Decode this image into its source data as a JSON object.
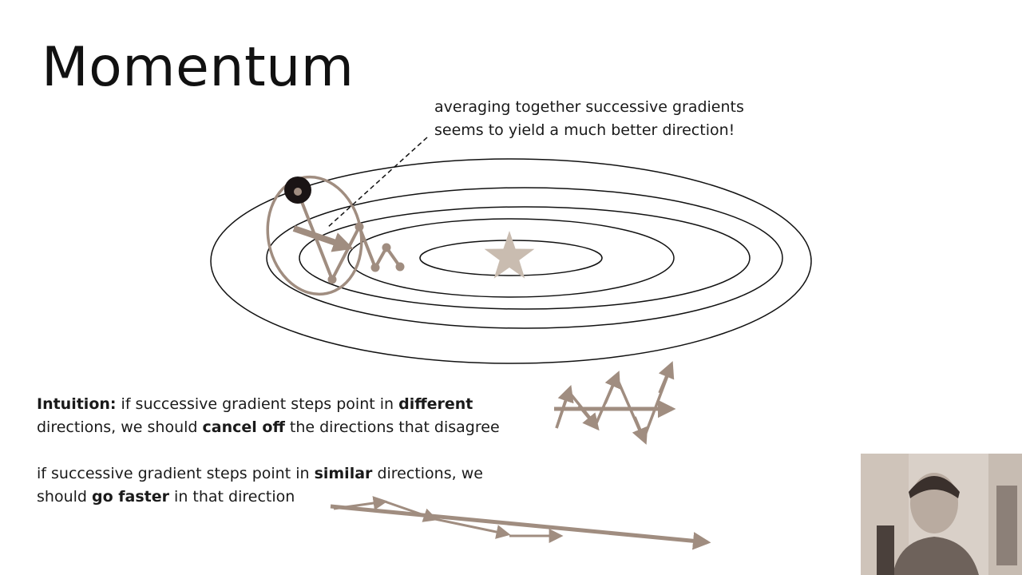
{
  "slide": {
    "title": "Momentum",
    "callout": {
      "line1": "averaging together successive gradients",
      "line2": "seems to yield a much better direction!"
    },
    "intuition": {
      "label": "Intuition:",
      "p1_seg1": " if successive gradient steps point in ",
      "p1_bold1": "different",
      "p1_seg2": "directions, we should ",
      "p1_bold2": "cancel off",
      "p1_seg3": " the directions that disagree",
      "p2_seg1": "if successive gradient steps point in ",
      "p2_bold1": "similar",
      "p2_seg2": " directions, we",
      "p2_seg3": "should ",
      "p2_bold2": "go faster",
      "p2_seg4": " in that direction"
    }
  },
  "colors": {
    "accent": "#a08d80",
    "contour": "#111111",
    "star": "#c9bcb0",
    "ball": "#1a1414"
  }
}
